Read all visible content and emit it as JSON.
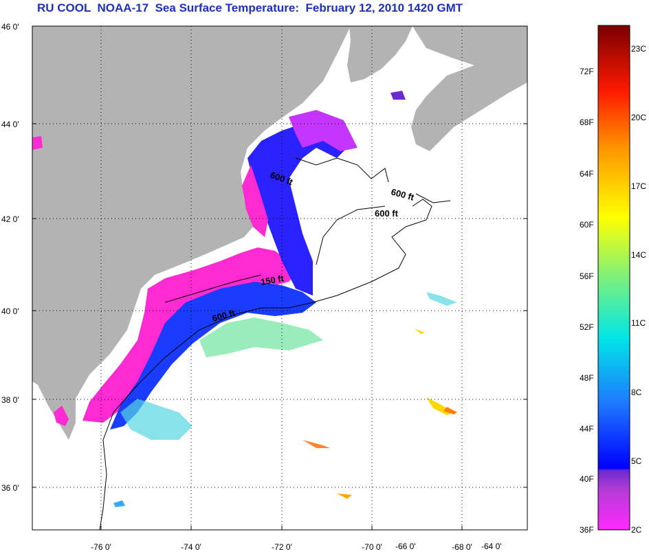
{
  "title": "RU COOL  NOAA-17  Sea Surface Temperature:  February 12, 2010 1420 GMT",
  "lat_labels": [
    "46 0'",
    "44 0'",
    "42 0'",
    "40 0'",
    "38 0'",
    "36 0'"
  ],
  "lon_labels": [
    "-76 0'",
    "-74 0'",
    "-72 0'",
    "-70 0'",
    "-68 0'",
    "-66 0'",
    "-64 0'"
  ],
  "contours": [
    "600 ft",
    "600 ft",
    "600 ft",
    "150 ft",
    "600 ft"
  ],
  "colorbar": {
    "fahrenheit": [
      "72F",
      "68F",
      "64F",
      "60F",
      "56F",
      "52F",
      "48F",
      "44F",
      "40F",
      "36F"
    ],
    "celsius": [
      "23C",
      "20C",
      "17C",
      "14C",
      "11C",
      "8C",
      "5C",
      "2C"
    ]
  },
  "colors": {
    "land": "#b3b3b3",
    "title": "#1f2fb8"
  }
}
